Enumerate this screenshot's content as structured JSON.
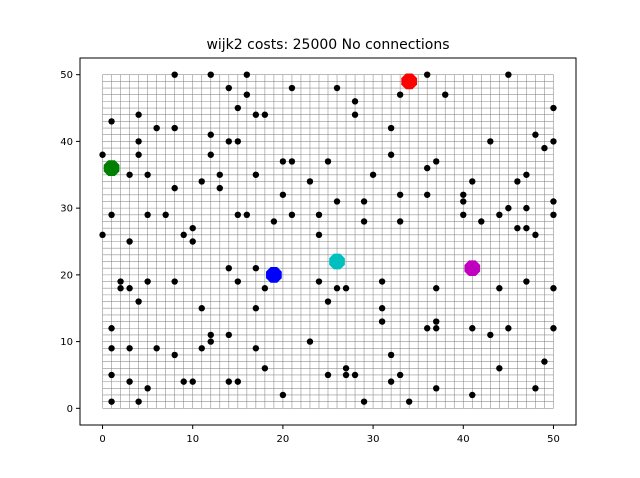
{
  "chart_data": {
    "type": "scatter",
    "title": "wijk2 costs: 25000 No connections",
    "xlabel": "",
    "ylabel": "",
    "xlim": [
      -2.5,
      52.5
    ],
    "ylim": [
      -2.5,
      52.5
    ],
    "xticks": [
      0,
      10,
      20,
      30,
      40,
      50
    ],
    "yticks": [
      0,
      10,
      20,
      30,
      40,
      50
    ],
    "grid": {
      "shown": true,
      "min": 0,
      "max": 50,
      "step": 1,
      "color": "#808080"
    },
    "series": [
      {
        "color": "#000000",
        "marker": "small-dot",
        "points": [
          [
            0,
            38
          ],
          [
            0,
            26
          ],
          [
            1,
            43
          ],
          [
            1,
            29
          ],
          [
            1,
            12
          ],
          [
            1,
            9
          ],
          [
            1,
            5
          ],
          [
            1,
            1
          ],
          [
            2,
            19
          ],
          [
            2,
            18
          ],
          [
            3,
            35
          ],
          [
            3,
            25
          ],
          [
            3,
            18
          ],
          [
            3,
            9
          ],
          [
            3,
            4
          ],
          [
            4,
            44
          ],
          [
            4,
            40
          ],
          [
            4,
            38
          ],
          [
            4,
            16
          ],
          [
            4,
            1
          ],
          [
            5,
            35
          ],
          [
            5,
            29
          ],
          [
            5,
            19
          ],
          [
            5,
            3
          ],
          [
            6,
            42
          ],
          [
            6,
            9
          ],
          [
            7,
            29
          ],
          [
            8,
            50
          ],
          [
            8,
            42
          ],
          [
            8,
            33
          ],
          [
            8,
            19
          ],
          [
            8,
            8
          ],
          [
            9,
            26
          ],
          [
            9,
            4
          ],
          [
            10,
            27
          ],
          [
            10,
            25
          ],
          [
            10,
            4
          ],
          [
            11,
            34
          ],
          [
            11,
            15
          ],
          [
            11,
            9
          ],
          [
            12,
            50
          ],
          [
            12,
            41
          ],
          [
            12,
            38
          ],
          [
            12,
            11
          ],
          [
            12,
            10
          ],
          [
            13,
            35
          ],
          [
            13,
            33
          ],
          [
            14,
            48
          ],
          [
            14,
            40
          ],
          [
            14,
            21
          ],
          [
            14,
            11
          ],
          [
            14,
            4
          ],
          [
            15,
            45
          ],
          [
            15,
            40
          ],
          [
            15,
            29
          ],
          [
            15,
            19
          ],
          [
            15,
            4
          ],
          [
            16,
            50
          ],
          [
            16,
            47
          ],
          [
            16,
            29
          ],
          [
            17,
            44
          ],
          [
            17,
            35
          ],
          [
            17,
            21
          ],
          [
            17,
            15
          ],
          [
            17,
            9
          ],
          [
            18,
            44
          ],
          [
            18,
            18
          ],
          [
            18,
            6
          ],
          [
            19,
            28
          ],
          [
            20,
            37
          ],
          [
            20,
            32
          ],
          [
            20,
            2
          ],
          [
            21,
            48
          ],
          [
            21,
            37
          ],
          [
            21,
            29
          ],
          [
            23,
            34
          ],
          [
            23,
            10
          ],
          [
            24,
            29
          ],
          [
            24,
            26
          ],
          [
            24,
            19
          ],
          [
            25,
            37
          ],
          [
            25,
            16
          ],
          [
            25,
            5
          ],
          [
            26,
            48
          ],
          [
            26,
            31
          ],
          [
            26,
            18
          ],
          [
            27,
            18
          ],
          [
            27,
            6
          ],
          [
            27,
            5
          ],
          [
            28,
            46
          ],
          [
            28,
            44
          ],
          [
            28,
            5
          ],
          [
            29,
            31
          ],
          [
            29,
            28
          ],
          [
            29,
            1
          ],
          [
            30,
            35
          ],
          [
            31,
            19
          ],
          [
            31,
            15
          ],
          [
            31,
            13
          ],
          [
            32,
            42
          ],
          [
            32,
            38
          ],
          [
            32,
            8
          ],
          [
            32,
            4
          ],
          [
            33,
            47
          ],
          [
            33,
            32
          ],
          [
            33,
            28
          ],
          [
            33,
            5
          ],
          [
            34,
            1
          ],
          [
            36,
            50
          ],
          [
            36,
            36
          ],
          [
            36,
            32
          ],
          [
            36,
            12
          ],
          [
            37,
            37
          ],
          [
            37,
            18
          ],
          [
            37,
            13
          ],
          [
            37,
            12
          ],
          [
            37,
            3
          ],
          [
            38,
            47
          ],
          [
            40,
            32
          ],
          [
            40,
            31
          ],
          [
            40,
            29
          ],
          [
            41,
            34
          ],
          [
            41,
            12
          ],
          [
            41,
            2
          ],
          [
            42,
            28
          ],
          [
            43,
            40
          ],
          [
            43,
            11
          ],
          [
            44,
            29
          ],
          [
            44,
            18
          ],
          [
            44,
            6
          ],
          [
            45,
            50
          ],
          [
            45,
            30
          ],
          [
            45,
            12
          ],
          [
            46,
            34
          ],
          [
            46,
            27
          ],
          [
            47,
            35
          ],
          [
            47,
            30
          ],
          [
            47,
            27
          ],
          [
            47,
            19
          ],
          [
            48,
            41
          ],
          [
            48,
            26
          ],
          [
            48,
            3
          ],
          [
            49,
            39
          ],
          [
            49,
            7
          ],
          [
            50,
            45
          ],
          [
            50,
            40
          ],
          [
            50,
            31
          ],
          [
            50,
            29
          ],
          [
            50,
            18
          ],
          [
            50,
            12
          ]
        ]
      },
      {
        "color": "#ff0000",
        "marker": "large-octagon",
        "points": [
          [
            34,
            49
          ]
        ]
      },
      {
        "color": "#008000",
        "marker": "large-octagon",
        "points": [
          [
            1,
            36
          ]
        ]
      },
      {
        "color": "#0000ff",
        "marker": "large-octagon",
        "points": [
          [
            19,
            20
          ]
        ]
      },
      {
        "color": "#00bfbf",
        "marker": "large-octagon",
        "points": [
          [
            26,
            22
          ]
        ]
      },
      {
        "color": "#bf00bf",
        "marker": "large-octagon",
        "points": [
          [
            41,
            21
          ]
        ]
      }
    ]
  }
}
